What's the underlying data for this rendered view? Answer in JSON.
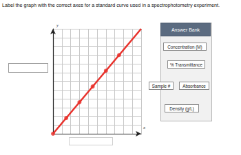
{
  "question": "Label the graph with the correct axes for a standard curve used in a spectrophotometry experiment.",
  "answer_bank": {
    "title": "Answer Bank",
    "items": [
      "Concentration (M)",
      "% Transmittance",
      "Sample #",
      "Absorbance",
      "Density (g/L)"
    ]
  },
  "chart_data": {
    "type": "line",
    "x_label": "x",
    "y_label": "y",
    "xlim": [
      0,
      10
    ],
    "ylim": [
      0,
      12
    ],
    "xticks": [
      0,
      1,
      2,
      3,
      4,
      5,
      6,
      7,
      8,
      9,
      10
    ],
    "yticks": [
      0,
      1,
      2,
      3,
      4,
      5,
      6,
      7,
      8,
      9,
      10,
      11,
      12
    ],
    "grid": true,
    "tick_labels": false,
    "series": [
      {
        "type": "line",
        "color": "#e8302a",
        "marker": "none",
        "x": [
          0,
          10
        ],
        "values": [
          0,
          12
        ]
      },
      {
        "type": "scatter",
        "color": "#e8302a",
        "marker": "circle",
        "x": [
          0,
          1.5,
          3,
          4.5,
          6,
          7.5
        ],
        "values": [
          0,
          1.8,
          3.6,
          5.4,
          7.2,
          9
        ]
      }
    ]
  }
}
